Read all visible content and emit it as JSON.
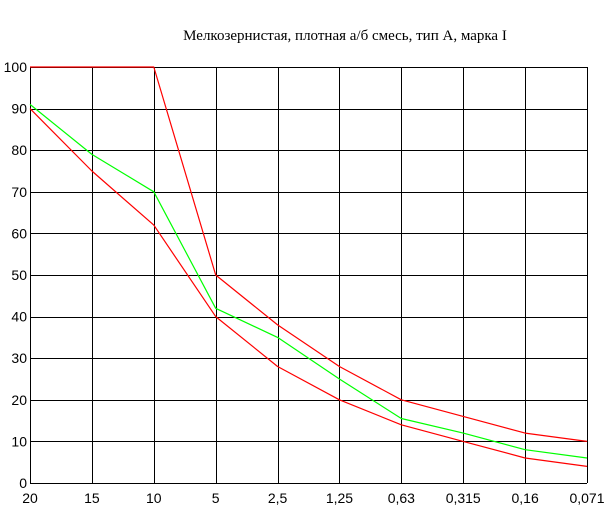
{
  "chart_data": {
    "type": "line",
    "title": "Мелкозернистая, плотная а/б смесь, тип А, марка I",
    "xlabel": "",
    "ylabel": "",
    "categories": [
      "20",
      "15",
      "10",
      "5",
      "2,5",
      "1,25",
      "0,63",
      "0,315",
      "0,16",
      "0,071"
    ],
    "y_ticks": [
      "0",
      "10",
      "20",
      "30",
      "40",
      "50",
      "60",
      "70",
      "80",
      "90",
      "100"
    ],
    "ylim": [
      0,
      100
    ],
    "grid": true,
    "series": [
      {
        "color": "#ff0000",
        "values": [
          100,
          100,
          100,
          50,
          38,
          28,
          20,
          16,
          12,
          10
        ]
      },
      {
        "color": "#00ff00",
        "values": [
          91,
          79,
          70,
          42,
          35,
          25,
          15.5,
          12,
          8,
          6
        ]
      },
      {
        "color": "#ff0000",
        "values": [
          90,
          75,
          62,
          40,
          28,
          20,
          14,
          10,
          6,
          4
        ]
      }
    ]
  }
}
